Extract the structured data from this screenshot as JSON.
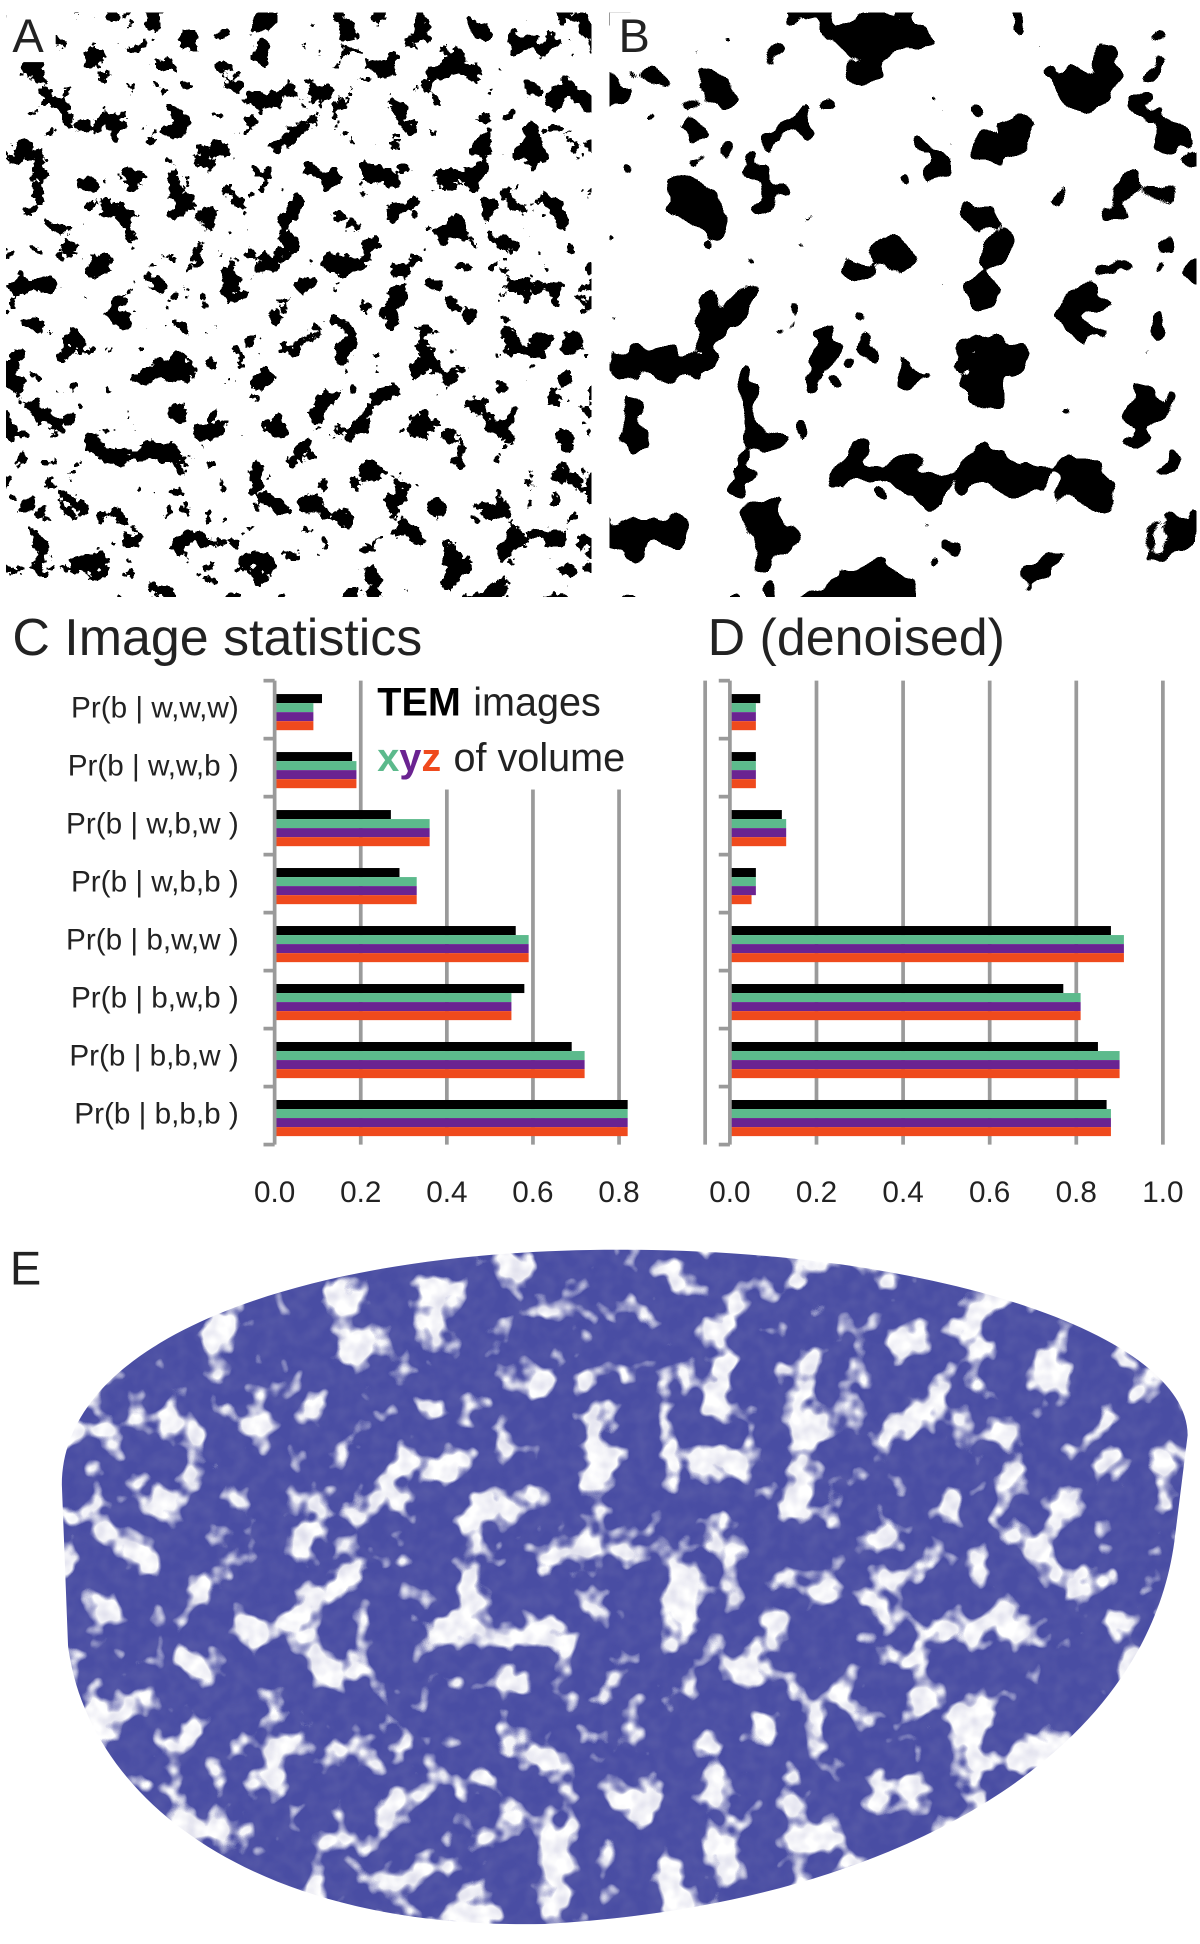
{
  "panels": {
    "a": "A",
    "b": "B",
    "e": "E"
  },
  "chart_data": [
    {
      "type": "bar",
      "title": "C Image statistics",
      "categories": [
        "Pr(b | w,w,w)",
        "Pr(b | w,w,b )",
        "Pr(b | w,b,w )",
        "Pr(b | w,b,b )",
        "Pr(b | b,w,w )",
        "Pr(b | b,w,b )",
        "Pr(b | b,b,w )",
        "Pr(b | b,b,b )"
      ],
      "series": [
        {
          "name": "TEM",
          "color": "#000000",
          "values": [
            0.11,
            0.18,
            0.27,
            0.29,
            0.56,
            0.58,
            0.69,
            0.82
          ]
        },
        {
          "name": "x",
          "color": "#5cba8c",
          "values": [
            0.09,
            0.19,
            0.36,
            0.33,
            0.59,
            0.55,
            0.72,
            0.82
          ]
        },
        {
          "name": "y",
          "color": "#6a2391",
          "values": [
            0.09,
            0.19,
            0.36,
            0.33,
            0.59,
            0.55,
            0.72,
            0.82
          ]
        },
        {
          "name": "z",
          "color": "#ef4a1d",
          "values": [
            0.09,
            0.19,
            0.36,
            0.33,
            0.59,
            0.55,
            0.72,
            0.82
          ]
        }
      ],
      "legend_suffixes": [
        "images",
        "of volume"
      ],
      "xlim": [
        0,
        1
      ],
      "xticks": [
        {
          "value": 0,
          "label": "0.0"
        },
        0.2,
        0.4,
        0.6,
        0.8
      ],
      "grid": true
    },
    {
      "type": "bar",
      "title": "D (denoised)",
      "series": [
        {
          "color": "#000000",
          "values": [
            0.07,
            0.06,
            0.12,
            0.06,
            0.88,
            0.77,
            0.85,
            0.87
          ]
        },
        {
          "color": "#5cba8c",
          "values": [
            0.06,
            0.06,
            0.13,
            0.06,
            0.91,
            0.81,
            0.9,
            0.88
          ]
        },
        {
          "color": "#6a2391",
          "values": [
            0.06,
            0.06,
            0.13,
            0.06,
            0.91,
            0.81,
            0.9,
            0.88
          ]
        },
        {
          "color": "#ef4a1d",
          "values": [
            0.06,
            0.06,
            0.13,
            0.05,
            0.91,
            0.81,
            0.9,
            0.88
          ]
        }
      ],
      "xlim": [
        0,
        1
      ],
      "xticks": [
        {
          "value": 0,
          "label": "0.0"
        },
        0.2,
        0.4,
        0.6,
        0.8,
        {
          "value": 1,
          "label": "1.0"
        }
      ],
      "grid": true
    }
  ]
}
